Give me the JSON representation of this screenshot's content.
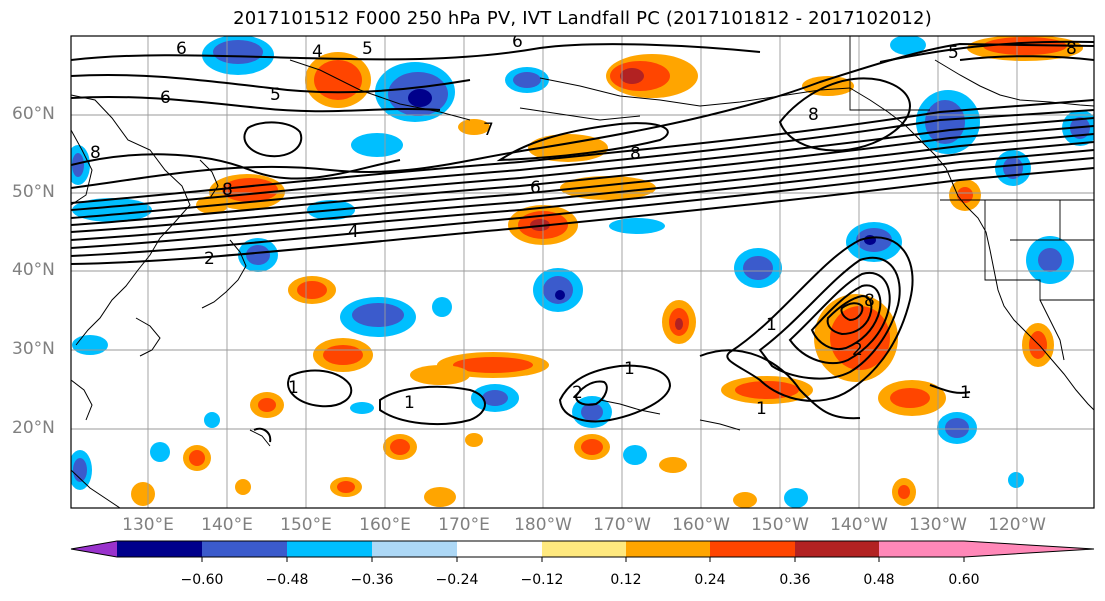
{
  "title": "2017101512 F000 250 hPa PV, IVT Landfall PC (2017101812 - 2017102012)",
  "lat_labels": [
    "60°N",
    "50°N",
    "40°N",
    "30°N",
    "20°N"
  ],
  "lon_labels": [
    "130°E",
    "140°E",
    "150°E",
    "160°E",
    "170°E",
    "180°W",
    "170°W",
    "160°W",
    "150°W",
    "140°W",
    "130°W",
    "120°W"
  ],
  "colorbar": {
    "labels": [
      "−0.60",
      "−0.48",
      "−0.36",
      "−0.24",
      "−0.12",
      "0.12",
      "0.24",
      "0.36",
      "0.48",
      "0.60"
    ],
    "colors": [
      "#9932CC",
      "#00008B",
      "#3B5BCC",
      "#00BFFF",
      "#ADD8F6",
      "#FFFFFF",
      "#FFE97F",
      "#FFA500",
      "#FF4500",
      "#B22222",
      "#FF88B8"
    ]
  },
  "contour_labels": [
    "6",
    "5",
    "4",
    "6",
    "5",
    "8",
    "7",
    "8",
    "6",
    "8",
    "8",
    "5",
    "6",
    "4",
    "2",
    "1",
    "1",
    "2",
    "1",
    "1",
    "1",
    "2",
    "8",
    "1",
    "8"
  ]
}
